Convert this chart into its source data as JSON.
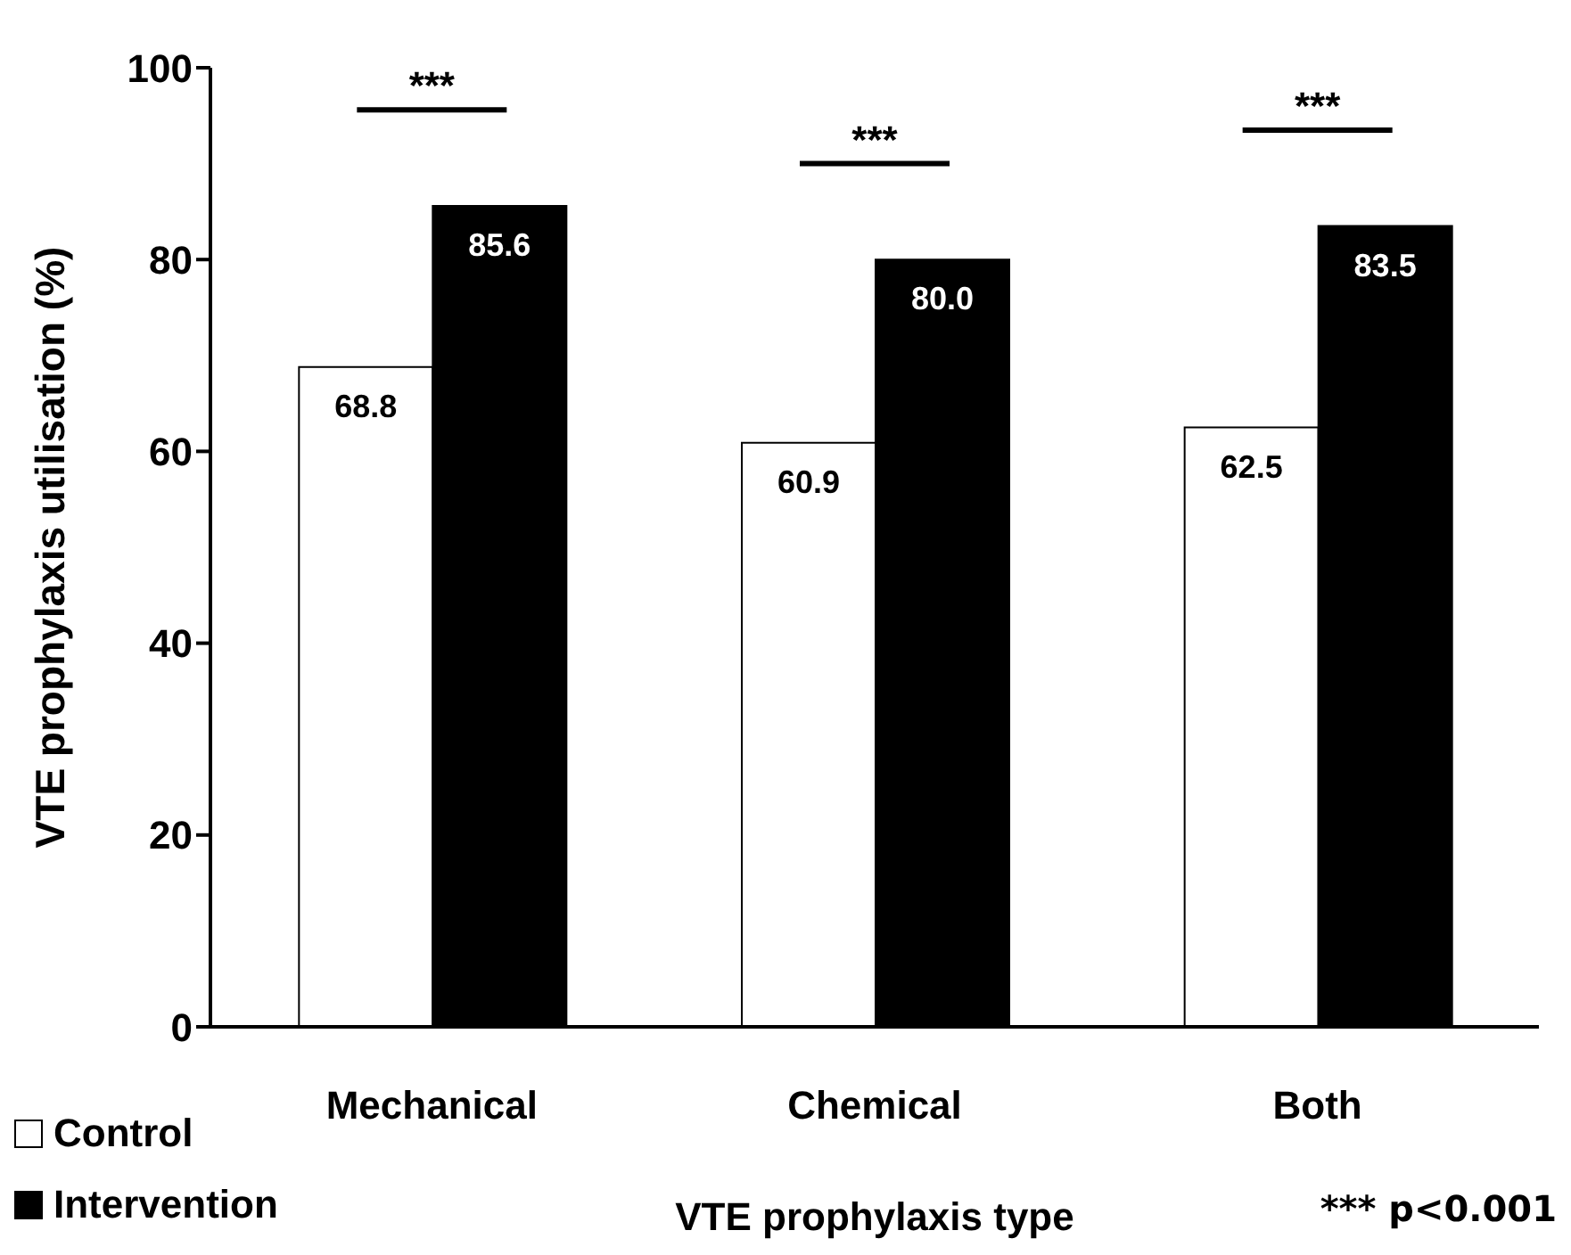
{
  "chart_data": {
    "type": "bar",
    "xlabel": "VTE prophylaxis type",
    "ylabel": "VTE prophylaxis utilisation (%)",
    "categories": [
      "Mechanical",
      "Chemical",
      "Both"
    ],
    "series": [
      {
        "name": "Control",
        "color": "#ffffff",
        "values": [
          68.8,
          60.9,
          62.5
        ],
        "value_labels": [
          "68.8",
          "60.9",
          "62.5"
        ]
      },
      {
        "name": "Intervention",
        "color": "#000000",
        "values": [
          85.6,
          80.0,
          83.5
        ],
        "value_labels": [
          "85.6",
          "80.0",
          "83.5"
        ]
      }
    ],
    "ylim": [
      0,
      100
    ],
    "yticks": [
      0,
      20,
      40,
      60,
      80,
      100
    ],
    "grid": false,
    "legend": "bottom left",
    "annotations": [
      "***",
      "***",
      "***",
      "*** p<0.001"
    ]
  }
}
